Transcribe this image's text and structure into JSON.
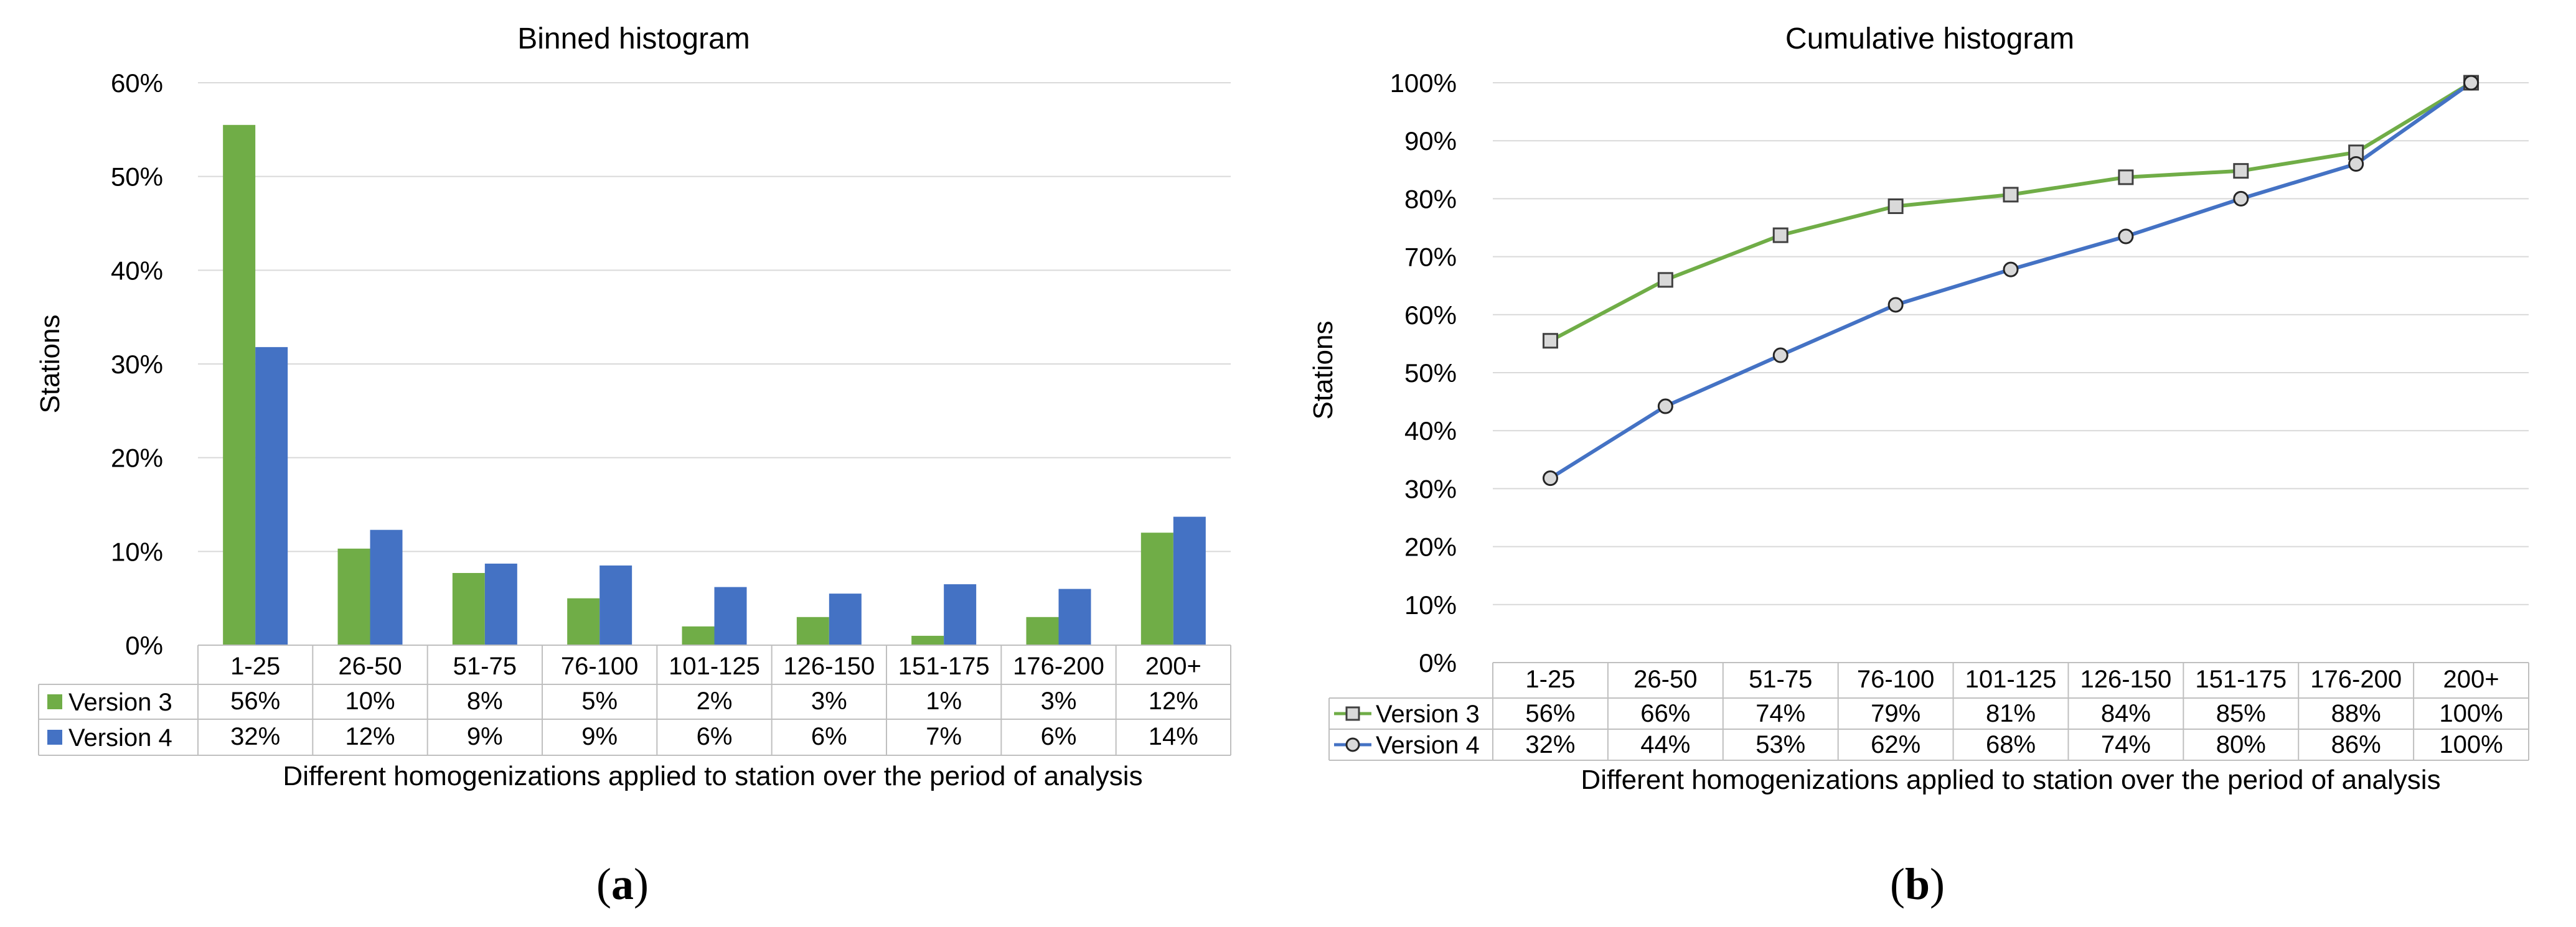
{
  "colors": {
    "version3": "#70AD47",
    "version4": "#4472C4",
    "grid": "#D9D9D9",
    "axis": "#BFBFBF",
    "marker_fill": "#D9D9D9"
  },
  "categories": [
    "1-25",
    "26-50",
    "51-75",
    "76-100",
    "101-125",
    "126-150",
    "151-175",
    "176-200",
    "200+"
  ],
  "chart_data": [
    {
      "type": "bar",
      "title": "Binned histogram",
      "xlabel": "Different homogenizations applied to station over the period of analysis",
      "ylabel": "Stations",
      "ylim": [
        0,
        60
      ],
      "yticks": [
        "0%",
        "10%",
        "20%",
        "30%",
        "40%",
        "50%",
        "60%"
      ],
      "categories": [
        "1-25",
        "26-50",
        "51-75",
        "76-100",
        "101-125",
        "126-150",
        "151-175",
        "176-200",
        "200+"
      ],
      "series": [
        {
          "name": "Version 3",
          "values": [
            55.5,
            10.3,
            7.7,
            5.0,
            2.0,
            3.0,
            1.0,
            3.0,
            12.0
          ],
          "labels": [
            "56%",
            "10%",
            "8%",
            "5%",
            "2%",
            "3%",
            "1%",
            "3%",
            "12%"
          ]
        },
        {
          "name": "Version 4",
          "values": [
            31.8,
            12.3,
            8.7,
            8.5,
            6.2,
            5.5,
            6.5,
            6.0,
            13.7
          ],
          "labels": [
            "32%",
            "12%",
            "9%",
            "9%",
            "6%",
            "6%",
            "7%",
            "6%",
            "14%"
          ]
        }
      ],
      "legend": "data-table-left",
      "panel": "(a)"
    },
    {
      "type": "line",
      "title": "Cumulative histogram",
      "xlabel": "Different homogenizations applied to station over the period of analysis",
      "ylabel": "Stations",
      "ylim": [
        0,
        100
      ],
      "yticks": [
        "0%",
        "10%",
        "20%",
        "30%",
        "40%",
        "50%",
        "60%",
        "70%",
        "80%",
        "90%",
        "100%"
      ],
      "categories": [
        "1-25",
        "26-50",
        "51-75",
        "76-100",
        "101-125",
        "126-150",
        "151-175",
        "176-200",
        "200+"
      ],
      "series": [
        {
          "name": "Version 3",
          "marker": "square",
          "values": [
            55.5,
            66,
            73.7,
            78.7,
            80.7,
            83.7,
            84.8,
            88,
            100
          ],
          "labels": [
            "56%",
            "66%",
            "74%",
            "79%",
            "81%",
            "84%",
            "85%",
            "88%",
            "100%"
          ]
        },
        {
          "name": "Version 4",
          "marker": "circle",
          "values": [
            31.8,
            44.2,
            53.0,
            61.7,
            67.8,
            73.5,
            80.0,
            86.0,
            100
          ],
          "labels": [
            "32%",
            "44%",
            "53%",
            "62%",
            "68%",
            "74%",
            "80%",
            "86%",
            "100%"
          ]
        }
      ],
      "legend": "data-table-left",
      "panel": "(b)"
    }
  ]
}
